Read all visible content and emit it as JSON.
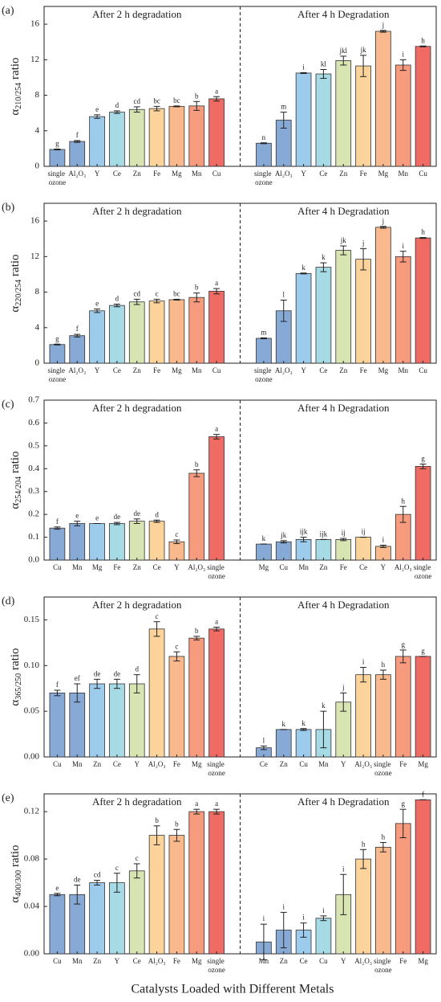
{
  "xlabel": "Catalysts Loaded with Different Metals",
  "chart_data": [
    {
      "type": "bar",
      "panel_label": "(a)",
      "ylabel": {
        "symbol": "α",
        "subscript": "210/254",
        "text": "ratio"
      },
      "ylim": [
        0,
        18
      ],
      "yticks": [
        0,
        4,
        8,
        12,
        16
      ],
      "colors": [
        "#87a9d6",
        "#87a9d6",
        "#9dcbec",
        "#a6dbe6",
        "#d9e4b3",
        "#fcd49b",
        "#f9b98c",
        "#f79b7e",
        "#ef6b63"
      ],
      "groups": [
        {
          "title": "After 2 h degradation",
          "categories": [
            "single ozone",
            "Al₂O₃",
            "Y",
            "Ce",
            "Zn",
            "Fe",
            "Mg",
            "Mn",
            "Cu"
          ],
          "values": [
            1.9,
            2.8,
            5.6,
            6.1,
            6.4,
            6.5,
            6.75,
            6.8,
            7.6
          ],
          "errors": [
            0.05,
            0.1,
            0.2,
            0.15,
            0.3,
            0.25,
            0.05,
            0.5,
            0.25
          ],
          "letters": [
            "g",
            "f",
            "e",
            "d",
            "cd",
            "bc",
            "bc",
            "b",
            "a"
          ]
        },
        {
          "title": "After 4 h Degradation",
          "categories": [
            "single ozone",
            "Al₂O₃",
            "Y",
            "Ce",
            "Zn",
            "Fe",
            "Mg",
            "Mn",
            "Cu"
          ],
          "values": [
            2.6,
            5.2,
            10.5,
            10.4,
            11.9,
            11.3,
            15.2,
            11.4,
            13.5
          ],
          "errors": [
            0.05,
            0.9,
            0.05,
            0.5,
            0.5,
            1.2,
            0.1,
            0.6,
            0.05
          ],
          "letters": [
            "n",
            "m",
            "i",
            "kl",
            "jkl",
            "jk",
            "j",
            "i",
            "h"
          ]
        }
      ]
    },
    {
      "type": "bar",
      "panel_label": "(b)",
      "ylabel": {
        "symbol": "α",
        "subscript": "220/254",
        "text": "ratio"
      },
      "ylim": [
        0,
        18
      ],
      "yticks": [
        0,
        4,
        8,
        12,
        16
      ],
      "colors": [
        "#87a9d6",
        "#87a9d6",
        "#9dcbec",
        "#a6dbe6",
        "#d9e4b3",
        "#fcd49b",
        "#f9b98c",
        "#f79b7e",
        "#ef6b63"
      ],
      "groups": [
        {
          "title": "After 2 h degradation",
          "categories": [
            "single ozone",
            "Al₂O₃",
            "Y",
            "Ce",
            "Zn",
            "Fe",
            "Mg",
            "Mn",
            "Cu"
          ],
          "values": [
            2.1,
            3.1,
            5.9,
            6.5,
            6.9,
            7.0,
            7.15,
            7.4,
            8.1
          ],
          "errors": [
            0.05,
            0.15,
            0.2,
            0.15,
            0.3,
            0.2,
            0.05,
            0.5,
            0.3
          ],
          "letters": [
            "g",
            "f",
            "e",
            "d",
            "cd",
            "c",
            "bc",
            "b",
            "a"
          ]
        },
        {
          "title": "After 4 h Degradation",
          "categories": [
            "single ozone",
            "Al₂O₃",
            "Y",
            "Ce",
            "Zn",
            "Fe",
            "Mg",
            "Mn",
            "Cu"
          ],
          "values": [
            2.8,
            5.9,
            10.1,
            10.8,
            12.7,
            11.7,
            15.3,
            12.0,
            14.1
          ],
          "errors": [
            0.05,
            1.2,
            0.05,
            0.5,
            0.5,
            1.2,
            0.1,
            0.6,
            0.05
          ],
          "letters": [
            "m",
            "l",
            "k",
            "k",
            "jk",
            "j",
            "j",
            "i",
            "h"
          ]
        }
      ]
    },
    {
      "type": "bar",
      "panel_label": "(c)",
      "ylabel": {
        "symbol": "α",
        "subscript": "254/204",
        "text": "ratio"
      },
      "ylim": [
        0,
        0.7
      ],
      "yticks": [
        {
          "value": 0,
          "label": "0.0"
        },
        0.1,
        0.2,
        0.3,
        0.4,
        0.5,
        0.6,
        0.7
      ],
      "colors": [
        "#87a9d6",
        "#87a9d6",
        "#9dcbec",
        "#a6dbe6",
        "#d9e4b3",
        "#fcd49b",
        "#f9b98c",
        "#f79b7e",
        "#ef6b63"
      ],
      "groups": [
        {
          "title": "After 2 h degradation",
          "categories": [
            "Cu",
            "Mn",
            "Mg",
            "Fe",
            "Zn",
            "Ce",
            "Y",
            "Al₂O₃",
            "single ozone"
          ],
          "values": [
            0.14,
            0.16,
            0.16,
            0.16,
            0.17,
            0.17,
            0.08,
            0.38,
            0.54
          ],
          "errors": [
            0.005,
            0.01,
            0,
            0.005,
            0.01,
            0.005,
            0.008,
            0.015,
            0.01
          ],
          "letters": [
            "f",
            "e",
            "e",
            "de",
            "de",
            "d",
            "c",
            "b",
            "a"
          ]
        },
        {
          "title": "After 4 h Degradation",
          "categories": [
            "Mg",
            "Cu",
            "Mn",
            "Zn",
            "Fe",
            "Ce",
            "Y",
            "Al₂O₃",
            "single ozone"
          ],
          "values": [
            0.07,
            0.08,
            0.09,
            0.09,
            0.09,
            0.1,
            0.06,
            0.2,
            0.41
          ],
          "errors": [
            0,
            0.005,
            0.01,
            0,
            0.005,
            0,
            0.005,
            0.035,
            0.01
          ],
          "letters": [
            "k",
            "jk",
            "ijk",
            "ijk",
            "ij",
            "ij",
            "i",
            "h",
            "g"
          ]
        }
      ]
    },
    {
      "type": "bar",
      "panel_label": "(d)",
      "ylabel": {
        "symbol": "α",
        "subscript": "365/250",
        "text": "ratio"
      },
      "ylim": [
        0,
        0.175
      ],
      "yticks": [
        {
          "value": 0,
          "label": "0.00"
        },
        {
          "value": 0.05,
          "label": "0.05"
        },
        {
          "value": 0.1,
          "label": "0.10"
        },
        {
          "value": 0.15,
          "label": "0.15"
        }
      ],
      "colors": [
        "#87a9d6",
        "#87a9d6",
        "#9dcbec",
        "#a6dbe6",
        "#d9e4b3",
        "#fcd49b",
        "#f9b98c",
        "#f79b7e",
        "#ef6b63"
      ],
      "groups": [
        {
          "title": "After 2 h degradation",
          "categories": [
            "Cu",
            "Mn",
            "Zn",
            "Ce",
            "Y",
            "Al₂O₃",
            "Fe",
            "Mg",
            "single ozone"
          ],
          "values": [
            0.07,
            0.07,
            0.08,
            0.08,
            0.08,
            0.14,
            0.11,
            0.13,
            0.14
          ],
          "errors": [
            0.003,
            0.01,
            0.005,
            0.005,
            0.01,
            0.008,
            0.005,
            0.002,
            0.002
          ],
          "letters": [
            "f",
            "ef",
            "de",
            "de",
            "d",
            "c",
            "c",
            "b",
            "a"
          ]
        },
        {
          "title": "After 4 h Degradation",
          "categories": [
            "Ce",
            "Zn",
            "Cu",
            "Mn",
            "Y",
            "Al₂O₃",
            "single ozone",
            "Fe",
            "Mg"
          ],
          "values": [
            0.01,
            0.03,
            0.03,
            0.03,
            0.06,
            0.09,
            0.09,
            0.11,
            0.11
          ],
          "errors": [
            0.002,
            0,
            0.001,
            0.02,
            0.01,
            0.008,
            0.005,
            0.007,
            0
          ],
          "letters": [
            "l",
            "k",
            "k",
            "k",
            "j",
            "i",
            "h",
            "g",
            "g"
          ]
        }
      ]
    },
    {
      "type": "bar",
      "panel_label": "(e)",
      "ylabel": {
        "symbol": "α",
        "subscript": "400/300",
        "text": "ratio"
      },
      "ylim": [
        0,
        0.135
      ],
      "yticks": [
        {
          "value": 0,
          "label": "0.00"
        },
        0.04,
        0.08,
        0.12
      ],
      "colors": [
        "#87a9d6",
        "#87a9d6",
        "#9dcbec",
        "#a6dbe6",
        "#d9e4b3",
        "#fcd49b",
        "#f9b98c",
        "#f79b7e",
        "#ef6b63"
      ],
      "groups": [
        {
          "title": "After 2 h degradation",
          "categories": [
            "Cu",
            "Mn",
            "Zn",
            "Y",
            "Ce",
            "Al₂O₃",
            "Fe",
            "Mg",
            "single ozone"
          ],
          "values": [
            0.05,
            0.05,
            0.06,
            0.06,
            0.07,
            0.1,
            0.1,
            0.12,
            0.12
          ],
          "errors": [
            0.001,
            0.008,
            0.002,
            0.008,
            0.006,
            0.008,
            0.005,
            0.002,
            0.002
          ],
          "letters": [
            "e",
            "de",
            "cd",
            "c",
            "c",
            "b",
            "b",
            "a",
            "a"
          ]
        },
        {
          "title": "After 4 h Degradation",
          "categories": [
            "Mn",
            "Zn",
            "Ce",
            "Cu",
            "Y",
            "Al₂O₃",
            "single ozone",
            "Fe",
            "Mg"
          ],
          "values": [
            0.01,
            0.02,
            0.02,
            0.03,
            0.05,
            0.08,
            0.09,
            0.11,
            0.13
          ],
          "errors": [
            0.015,
            0.015,
            0.006,
            0.002,
            0.017,
            0.008,
            0.004,
            0.012,
            0
          ],
          "letters": [
            "i",
            "i",
            "i",
            "i",
            "i",
            "h",
            "h",
            "g",
            "f"
          ]
        }
      ]
    }
  ]
}
